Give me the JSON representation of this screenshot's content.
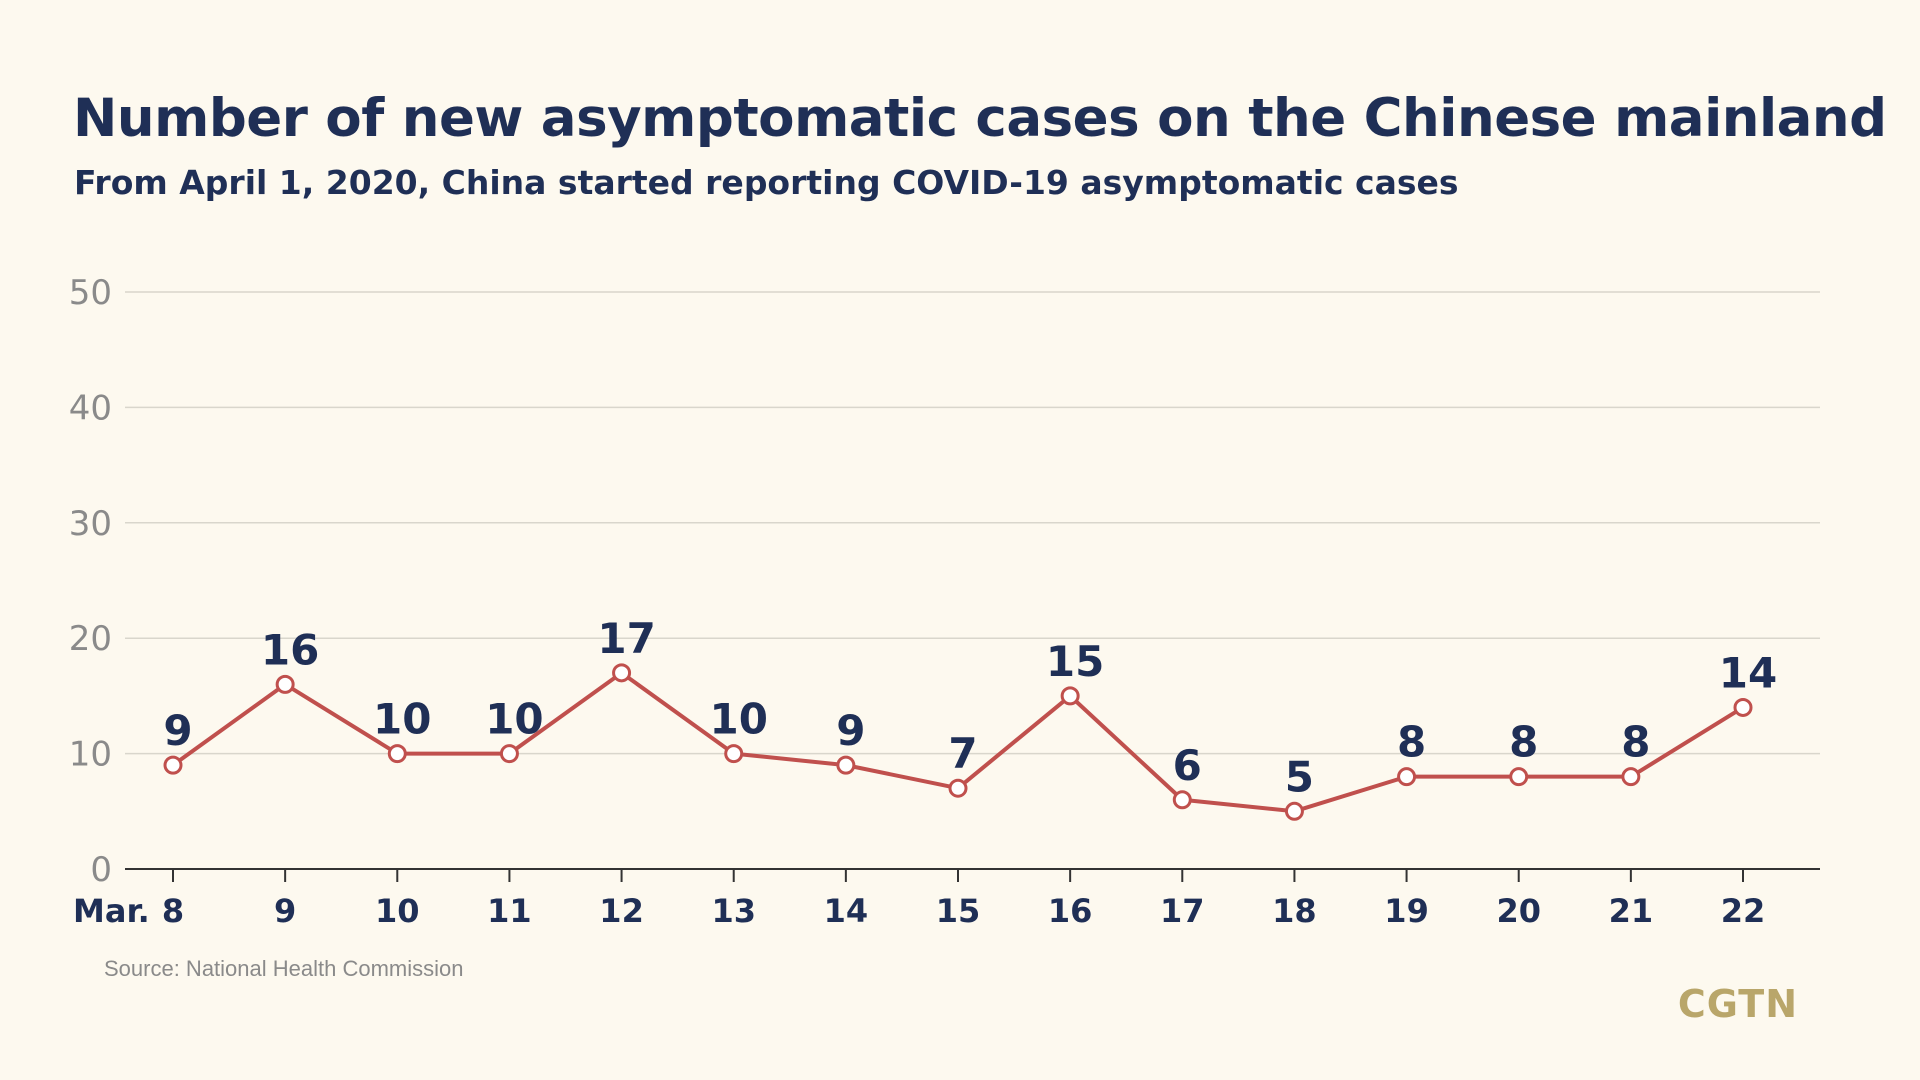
{
  "header": {
    "title": "Number of new asymptomatic cases on the Chinese mainland",
    "subtitle": "From April 1, 2020, China started reporting COVID-19 asymptomatic cases"
  },
  "footer": {
    "source": "Source: National Health Commission",
    "logo": "CGTN"
  },
  "colors": {
    "background": "#fdf9ef",
    "title": "#1f2f56",
    "line": "#c0504d",
    "grid": "#d9d6cc",
    "axis_labels": "#8a8a8a",
    "logo": "#b9a66a"
  },
  "chart_data": {
    "type": "line",
    "title": "Number of new asymptomatic cases on the Chinese mainland",
    "subtitle": "From April 1, 2020, China started reporting COVID-19 asymptomatic cases",
    "x_prefix": "Mar.",
    "categories": [
      "8",
      "9",
      "10",
      "11",
      "12",
      "13",
      "14",
      "15",
      "16",
      "17",
      "18",
      "19",
      "20",
      "21",
      "22"
    ],
    "values": [
      9,
      16,
      10,
      10,
      17,
      10,
      9,
      7,
      15,
      6,
      5,
      8,
      8,
      8,
      14
    ],
    "ylim": [
      0,
      50
    ],
    "yticks": [
      0,
      10,
      20,
      30,
      40,
      50
    ],
    "grid": true,
    "data_labels": true
  }
}
